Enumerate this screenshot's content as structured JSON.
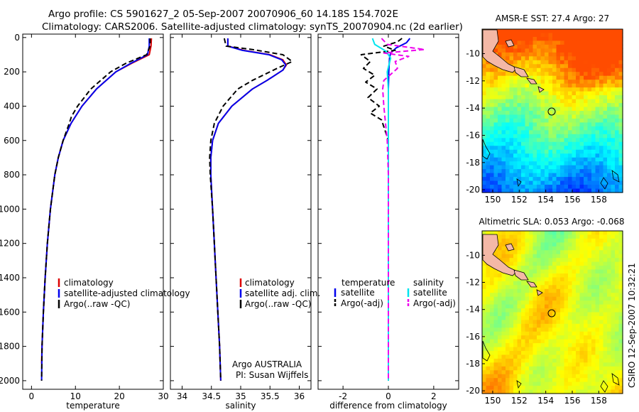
{
  "header": {
    "title_line1": "Argo profile: CS 5901627_2 05-Sep-2007 20070906_60 14.18S 154.702E",
    "title_line2": "Climatology: CARS2006. Satellite-adjusted climatology: synTS_20070904.nc (2d earlier)"
  },
  "colors": {
    "climatology": "#dd0000",
    "satellite": "#0000ee",
    "argo": "#000000",
    "sal_satellite": "#00e5ee",
    "sal_argo": "#ee00ee"
  },
  "chart_data": [
    {
      "type": "line",
      "name": "temperature-panel",
      "xlabel": "temperature",
      "xlim": [
        -2,
        30
      ],
      "ylim": [
        2050,
        -20
      ],
      "xticks": [
        "0",
        "10",
        "20",
        "30"
      ],
      "xtick_values": [
        0,
        10,
        20,
        30
      ],
      "yticks": [
        "0",
        "200",
        "400",
        "600",
        "800",
        "1000",
        "1200",
        "1400",
        "1600",
        "1800",
        "2000"
      ],
      "ytick_values": [
        0,
        200,
        400,
        600,
        800,
        1000,
        1200,
        1400,
        1600,
        1800,
        2000
      ],
      "legend": [
        "climatology",
        "satellite-adjusted climatology",
        "Argo(..raw -QC)"
      ],
      "series": [
        {
          "name": "climatology",
          "style": "solid",
          "color": "#dd0000",
          "depth": [
            5,
            50,
            100,
            150,
            200,
            300,
            400,
            500,
            600,
            700,
            800,
            1000,
            1200,
            1400,
            1600,
            1800,
            1900
          ],
          "values": [
            27.3,
            27.2,
            26.8,
            22.8,
            19.2,
            14.8,
            11.5,
            9.0,
            7.2,
            6.1,
            5.3,
            4.3,
            3.6,
            3.1,
            2.7,
            2.4,
            2.3
          ]
        },
        {
          "name": "satellite-adjusted climatology",
          "style": "solid",
          "color": "#0000ee",
          "depth": [
            5,
            50,
            100,
            150,
            200,
            300,
            400,
            500,
            600,
            700,
            800,
            1000,
            1200,
            1400,
            1600,
            1800,
            2000
          ],
          "values": [
            26.8,
            26.8,
            26.4,
            22.6,
            19.2,
            14.8,
            11.5,
            9.0,
            7.2,
            6.1,
            5.3,
            4.3,
            3.6,
            3.1,
            2.7,
            2.4,
            2.3
          ]
        },
        {
          "name": "Argo(..raw -QC)",
          "style": "dashed",
          "color": "#000000",
          "depth": [
            5,
            50,
            100,
            150,
            200,
            300,
            400,
            460,
            500,
            600,
            700,
            800,
            1000,
            1200,
            1400,
            1600,
            1800,
            2000
          ],
          "values": [
            27.0,
            27.0,
            26.2,
            21.5,
            18.0,
            13.5,
            10.5,
            9.1,
            8.6,
            7.2,
            6.1,
            5.3,
            4.3,
            3.6,
            3.1,
            2.7,
            2.4,
            2.3
          ]
        }
      ]
    },
    {
      "type": "line",
      "name": "salinity-panel",
      "xlabel": "salinity",
      "xlim": [
        33.8,
        36.2
      ],
      "ylim": [
        2050,
        -20
      ],
      "xticks": [
        "34",
        "34.5",
        "35",
        "35.5",
        "36"
      ],
      "xtick_values": [
        34,
        34.5,
        35,
        35.5,
        36
      ],
      "legend": [
        "climatology",
        "satellite adj. clim.",
        "Argo(..raw -QC)"
      ],
      "annotation": [
        "Argo AUSTRALIA",
        "PI: Susan Wijffels"
      ],
      "series": [
        {
          "name": "climatology",
          "style": "solid",
          "color": "#dd0000",
          "depth": [
            5,
            50,
            75,
            100,
            130,
            160,
            190,
            250,
            300,
            400,
            500,
            600,
            700,
            800,
            1000,
            1200,
            1400,
            1600,
            1800,
            2000
          ],
          "values": [
            34.78,
            34.78,
            35.05,
            35.5,
            35.72,
            35.78,
            35.72,
            35.45,
            35.2,
            34.85,
            34.62,
            34.52,
            34.49,
            34.49,
            34.52,
            34.55,
            34.58,
            34.61,
            34.64,
            34.66
          ]
        },
        {
          "name": "satellite adj. clim.",
          "style": "solid",
          "color": "#0000ee",
          "depth": [
            5,
            50,
            75,
            100,
            130,
            160,
            190,
            250,
            300,
            400,
            500,
            600,
            700,
            800,
            1000,
            1200,
            1400,
            1600,
            1800,
            2000
          ],
          "values": [
            34.78,
            34.78,
            35.03,
            35.48,
            35.7,
            35.77,
            35.72,
            35.45,
            35.2,
            34.85,
            34.62,
            34.52,
            34.49,
            34.49,
            34.52,
            34.55,
            34.58,
            34.61,
            34.64,
            34.66
          ]
        },
        {
          "name": "Argo(..raw -QC)",
          "style": "dashed",
          "color": "#000000",
          "depth": [
            5,
            50,
            70,
            100,
            140,
            180,
            250,
            300,
            400,
            500,
            600,
            700,
            800,
            1000,
            1200,
            1400,
            1600,
            1800,
            2000
          ],
          "values": [
            34.72,
            34.75,
            35.2,
            35.72,
            35.88,
            35.62,
            35.2,
            34.95,
            34.7,
            34.55,
            34.49,
            34.47,
            34.48,
            34.52,
            34.55,
            34.58,
            34.61,
            34.64,
            34.66
          ]
        }
      ]
    },
    {
      "type": "line",
      "name": "difference-panel",
      "xlabel": "difference from climatology",
      "xlim": [
        -3.1,
        3.1
      ],
      "ylim": [
        2050,
        -20
      ],
      "xticks": [
        "-2",
        "0",
        "2"
      ],
      "xtick_values": [
        -2,
        0,
        2
      ],
      "legend_headers": [
        "temperature",
        "salinity"
      ],
      "legend": [
        "satellite",
        "Argo(-adj)",
        "satellite",
        "Argo(-adj)"
      ],
      "series": [
        {
          "name": "temperature satellite",
          "style": "solid",
          "color": "#0000ee",
          "depth": [
            5,
            30,
            60,
            90,
            120,
            200,
            300,
            400,
            500,
            600,
            800,
            1000,
            1500,
            1900
          ],
          "values": [
            0.95,
            0.8,
            0.35,
            0.1,
            0.05,
            0.02,
            0.0,
            0.0,
            0.0,
            0.0,
            0.0,
            0.0,
            0.0,
            0.0
          ]
        },
        {
          "name": "temperature Argo(-adj)",
          "style": "dashed",
          "color": "#000000",
          "depth": [
            5,
            25,
            50,
            75,
            100,
            140,
            180,
            220,
            260,
            300,
            350,
            400,
            440,
            480,
            520,
            560,
            600,
            700,
            800,
            1000,
            1500,
            2000
          ],
          "values": [
            0.6,
            0.4,
            -0.2,
            0.3,
            -1.2,
            -0.8,
            -1.1,
            -0.6,
            -1.0,
            -0.5,
            -0.9,
            -0.4,
            -0.8,
            -0.3,
            -0.2,
            -0.1,
            0.0,
            0.0,
            0.0,
            0.0,
            0.0,
            0.0
          ]
        },
        {
          "name": "salinity satellite",
          "style": "solid",
          "color": "#00e5ee",
          "depth": [
            5,
            40,
            80,
            120,
            200,
            300,
            400,
            600,
            800,
            1000,
            1500,
            2000
          ],
          "values": [
            -0.7,
            -0.6,
            -0.1,
            0.1,
            -0.05,
            0.0,
            0.0,
            0.0,
            0.0,
            0.0,
            0.0,
            0.0
          ]
        },
        {
          "name": "salinity Argo(-adj)",
          "style": "dashed",
          "color": "#ee00ee",
          "depth": [
            5,
            40,
            70,
            90,
            110,
            140,
            180,
            250,
            300,
            400,
            600,
            800,
            1000,
            1500,
            2000
          ],
          "values": [
            -0.3,
            -0.05,
            1.6,
            -0.2,
            0.9,
            0.3,
            0.4,
            -0.2,
            -0.25,
            -0.2,
            -0.05,
            0.0,
            0.0,
            0.0,
            0.0
          ]
        }
      ]
    },
    {
      "type": "heatmap",
      "name": "sst-map",
      "title": "AMSR-E SST: 27.4  Argo: 27",
      "xlim": [
        149.2,
        159.8
      ],
      "ylim": [
        -20.2,
        -8.2
      ],
      "xticks": [
        "150",
        "152",
        "154",
        "156",
        "158"
      ],
      "xtick_values": [
        150,
        152,
        154,
        156,
        158
      ],
      "yticks": [
        "-10",
        "-12",
        "-14",
        "-16",
        "-18",
        "-20"
      ],
      "ytick_values": [
        -10,
        -12,
        -14,
        -16,
        -18,
        -20
      ],
      "argo_location": {
        "lon": 154.702,
        "lat": -14.18
      }
    },
    {
      "type": "heatmap",
      "name": "sla-map",
      "title": "Altimetric SLA: 0.053  Argo: -0.068",
      "xlim": [
        149.2,
        159.8
      ],
      "ylim": [
        -20.2,
        -8.2
      ],
      "xticks": [
        "150",
        "152",
        "154",
        "156",
        "158"
      ],
      "xtick_values": [
        150,
        152,
        154,
        156,
        158
      ],
      "yticks": [
        "-10",
        "-12",
        "-14",
        "-16",
        "-18",
        "-20"
      ],
      "ytick_values": [
        -10,
        -12,
        -14,
        -16,
        -18,
        -20
      ],
      "argo_location": {
        "lon": 154.702,
        "lat": -14.18
      }
    }
  ],
  "footer": {
    "stamp": "CSIRO 12-Sep-2007 10:32:21"
  }
}
